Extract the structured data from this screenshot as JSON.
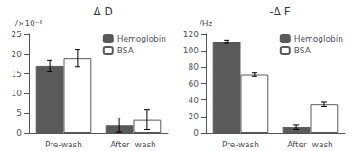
{
  "chart_data": [
    {
      "type": "bar",
      "title": "Δ D",
      "ylabel": "/×10⁻⁶",
      "categories": [
        "Pre-wash",
        "After  wash"
      ],
      "series": [
        {
          "name": "Hemoglobin",
          "color": "#5a5a5a",
          "values": [
            17.0,
            2.0
          ],
          "errors": [
            1.5,
            1.8
          ]
        },
        {
          "name": "BSA",
          "color": "#ffffff",
          "values": [
            19.0,
            3.3
          ],
          "errors": [
            2.2,
            2.5
          ]
        }
      ],
      "ylim": [
        0,
        25
      ],
      "yticks": [
        0,
        5,
        10,
        15,
        20,
        25
      ],
      "grid": false,
      "legend": "upper right"
    },
    {
      "type": "bar",
      "title": "-Δ F",
      "ylabel": "/Hz",
      "categories": [
        "Pre-wash",
        "After  wash"
      ],
      "series": [
        {
          "name": "Hemoglobin",
          "color": "#5a5a5a",
          "values": [
            111.0,
            7.0
          ],
          "errors": [
            2.0,
            3.0
          ]
        },
        {
          "name": "BSA",
          "color": "#ffffff",
          "values": [
            71.0,
            35.0
          ],
          "errors": [
            2.0,
            2.5
          ]
        }
      ],
      "ylim": [
        0,
        120
      ],
      "yticks": [
        0,
        20,
        40,
        60,
        80,
        100,
        120
      ],
      "grid": false,
      "legend": "upper right"
    }
  ]
}
